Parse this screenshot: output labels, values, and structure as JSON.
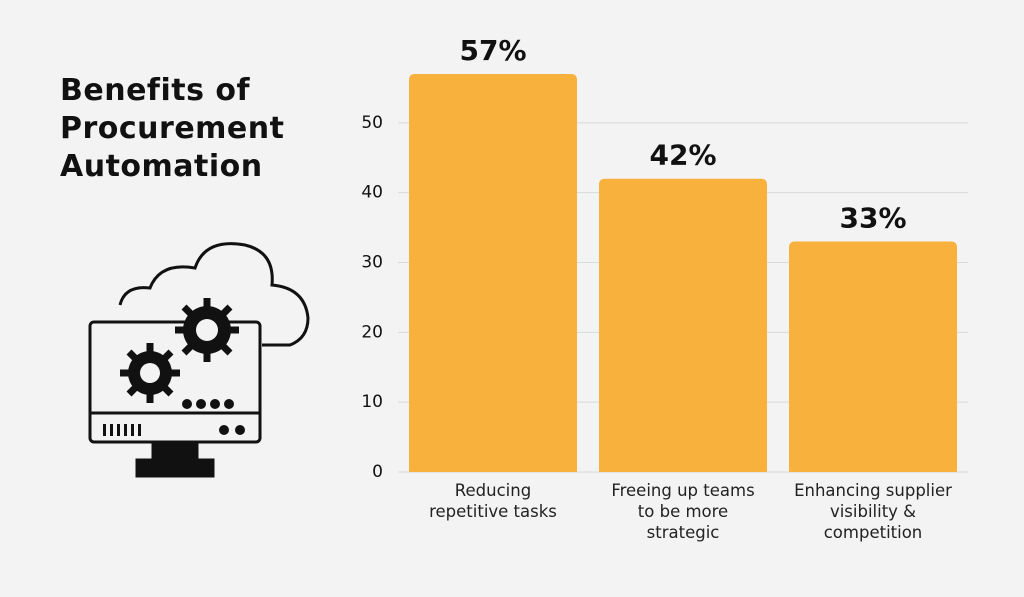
{
  "chart_data": {
    "type": "bar",
    "title": "Benefits of Procurement Automation",
    "categories": [
      "Reducing repetitive tasks",
      "Freeing up teams to be more strategic",
      "Enhancing supplier visibility & competition"
    ],
    "values": [
      57,
      42,
      33
    ],
    "value_labels": [
      "57%",
      "42%",
      "33%"
    ],
    "color": "#f9b13e",
    "ylim": [
      0,
      60
    ],
    "yticks": [
      0,
      10,
      20,
      30,
      40,
      50
    ],
    "grid": true
  }
}
